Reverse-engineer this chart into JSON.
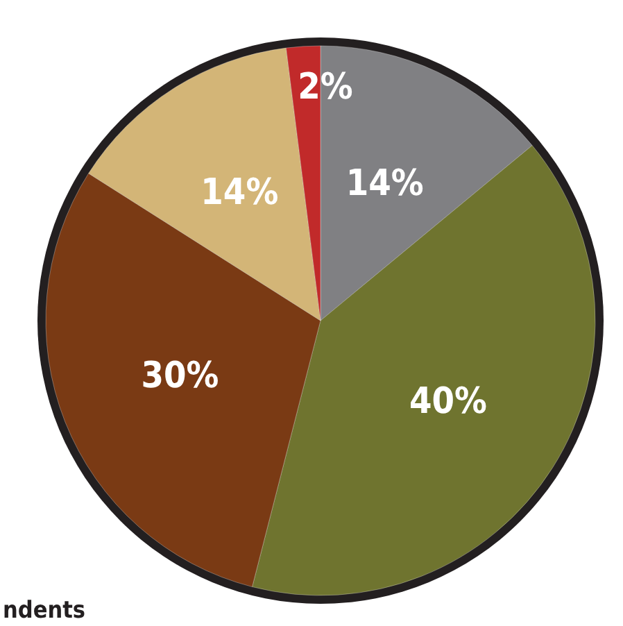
{
  "chart_data": {
    "type": "pie",
    "categories": [
      null,
      null,
      null,
      null,
      null
    ],
    "values": [
      14,
      40,
      30,
      14,
      2
    ],
    "colors": [
      "#808083",
      "#6f742f",
      "#7a3a14",
      "#d3b577",
      "#c12a2a"
    ],
    "value_labels": [
      "14%",
      "40%",
      "30%",
      "14%",
      "2%"
    ],
    "annotations": [
      "ndents"
    ]
  }
}
